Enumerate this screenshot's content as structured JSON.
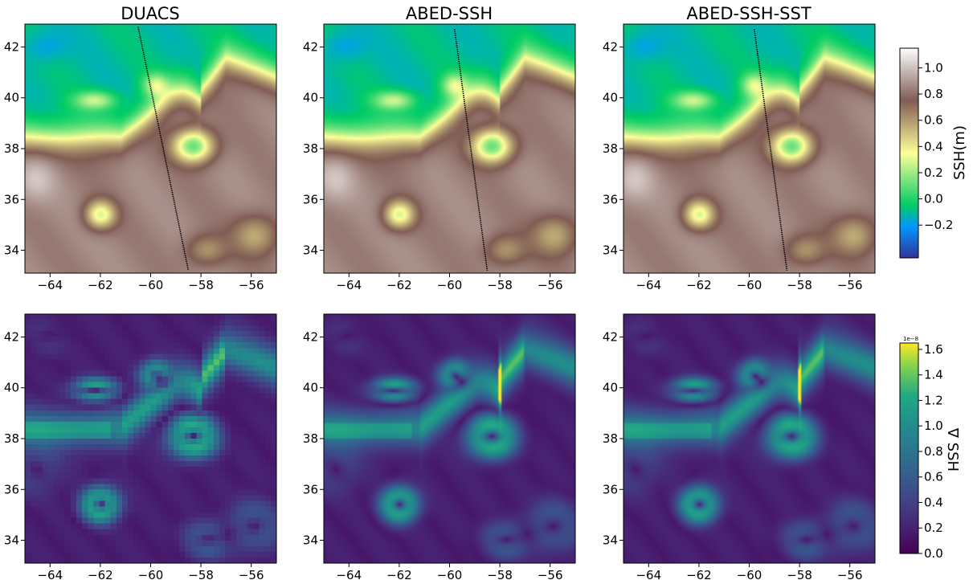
{
  "chart_data": [
    {
      "type": "heatmap",
      "title": "DUACS",
      "variable": "SSH",
      "xlim": [
        -65,
        -55
      ],
      "ylim": [
        33.1,
        42.9
      ],
      "xticks": [
        "−64",
        "−62",
        "−60",
        "−58",
        "−56"
      ],
      "yticks": [
        "34",
        "36",
        "38",
        "40",
        "42"
      ],
      "track": {
        "lon": [
          -60.5,
          -58.5
        ],
        "lat": [
          42.8,
          33.2
        ]
      },
      "resolution": "fine"
    },
    {
      "type": "heatmap",
      "title": "ABED-SSH",
      "variable": "SSH",
      "xlim": [
        -65,
        -55
      ],
      "ylim": [
        33.1,
        42.9
      ],
      "xticks": [
        "−64",
        "−62",
        "−60",
        "−58",
        "−56"
      ],
      "yticks": [
        "34",
        "36",
        "38",
        "40",
        "42"
      ],
      "track": {
        "lon": [
          -59.8,
          -58.5
        ],
        "lat": [
          42.7,
          33.2
        ]
      },
      "resolution": "fine"
    },
    {
      "type": "heatmap",
      "title": "ABED-SSH-SST",
      "variable": "SSH",
      "xlim": [
        -65,
        -55
      ],
      "ylim": [
        33.1,
        42.9
      ],
      "xticks": [
        "−64",
        "−62",
        "−60",
        "−58",
        "−56"
      ],
      "yticks": [
        "34",
        "36",
        "38",
        "40",
        "42"
      ],
      "track": {
        "lon": [
          -59.8,
          -58.5
        ],
        "lat": [
          42.7,
          33.2
        ]
      },
      "resolution": "fine"
    },
    {
      "type": "heatmap",
      "title": "",
      "variable": "grad",
      "xlim": [
        -65,
        -55
      ],
      "ylim": [
        33.1,
        42.9
      ],
      "xticks": [
        "−64",
        "−62",
        "−60",
        "−58",
        "−56"
      ],
      "yticks": [
        "34",
        "36",
        "38",
        "40",
        "42"
      ],
      "resolution": "coarse"
    },
    {
      "type": "heatmap",
      "title": "",
      "variable": "grad",
      "xlim": [
        -65,
        -55
      ],
      "ylim": [
        33.1,
        42.9
      ],
      "xticks": [
        "−64",
        "−62",
        "−60",
        "−58",
        "−56"
      ],
      "yticks": [
        "34",
        "36",
        "38",
        "40",
        "42"
      ],
      "resolution": "fine"
    },
    {
      "type": "heatmap",
      "title": "",
      "variable": "grad",
      "xlim": [
        -65,
        -55
      ],
      "ylim": [
        33.1,
        42.9
      ],
      "xticks": [
        "−64",
        "−62",
        "−60",
        "−58",
        "−56"
      ],
      "yticks": [
        "34",
        "36",
        "38",
        "40",
        "42"
      ],
      "resolution": "fine"
    }
  ],
  "colorbars": [
    {
      "label": "SSH(m)",
      "colormap": "terrain",
      "range": [
        -0.45,
        1.15
      ],
      "ticks": [
        -0.2,
        0.0,
        0.2,
        0.4,
        0.6,
        0.8,
        1.0
      ],
      "tick_labels": [
        "−0.2",
        "0.0",
        "0.2",
        "0.4",
        "0.6",
        "0.8",
        "1.0"
      ],
      "exponent": ""
    },
    {
      "label": "∇ SSH",
      "colormap": "viridis",
      "range": [
        0.0,
        1.65
      ],
      "ticks": [
        0.0,
        0.2,
        0.4,
        0.6,
        0.8,
        1.0,
        1.2,
        1.4,
        1.6
      ],
      "tick_labels": [
        "0.0",
        "0.2",
        "0.4",
        "0.6",
        "0.8",
        "1.0",
        "1.2",
        "1.4",
        "1.6"
      ],
      "exponent": "1e−8"
    }
  ]
}
